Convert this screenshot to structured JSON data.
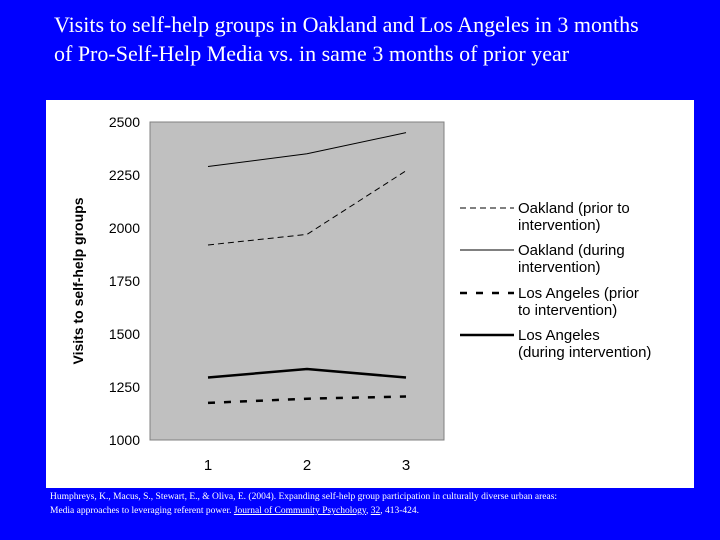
{
  "slide": {
    "title_line1": "Visits to self-help groups in Oakland and Los Angeles in 3 months",
    "title_line2": "of Pro-Self-Help Media vs. in same 3 months of prior year"
  },
  "citation": {
    "line1": "Humphreys, K., Macus, S., Stewart, E., & Oliva, E. (2004).  Expanding self-help group participation in culturally diverse urban areas:",
    "line2_a": "Media approaches to leveraging referent power.  ",
    "journal": "Journal of Community Psychology",
    "line2_b": ", ",
    "volume": "32",
    "line2_c": ", 413-424."
  },
  "chart_data": {
    "type": "line",
    "title": "",
    "xlabel": "",
    "ylabel": "Visits to self-help groups",
    "x": [
      1,
      2,
      3
    ],
    "xticks": [
      "1",
      "2",
      "3"
    ],
    "ylim": [
      1000,
      2500
    ],
    "yticks": [
      1000,
      1250,
      1500,
      1750,
      2000,
      2250,
      2500
    ],
    "grid": false,
    "plot_background": "#c0c0c0",
    "legend_position": "right",
    "series": [
      {
        "name": "Oakland (prior to intervention)",
        "values": [
          1920,
          1970,
          2270
        ],
        "style": "thin-dashed",
        "color": "#000000"
      },
      {
        "name": "Oakland (during intervention)",
        "values": [
          2290,
          2350,
          2450
        ],
        "style": "thin-solid",
        "color": "#000000"
      },
      {
        "name": "Los Angeles (prior to intervention)",
        "values": [
          1175,
          1195,
          1205
        ],
        "style": "thick-dashed",
        "color": "#000000"
      },
      {
        "name": "Los Angeles (during intervention)",
        "values": [
          1295,
          1335,
          1295
        ],
        "style": "thick-solid",
        "color": "#000000"
      }
    ],
    "legend_lines": [
      [
        "Oakland (prior to",
        "intervention)"
      ],
      [
        "Oakland (during",
        "intervention)"
      ],
      [
        "Los Angeles (prior",
        "to intervention)"
      ],
      [
        "Los Angeles",
        "(during intervention)"
      ]
    ]
  },
  "colors": {
    "background": "#0000ff",
    "panel": "#ffffff",
    "text": "#ffffff"
  }
}
